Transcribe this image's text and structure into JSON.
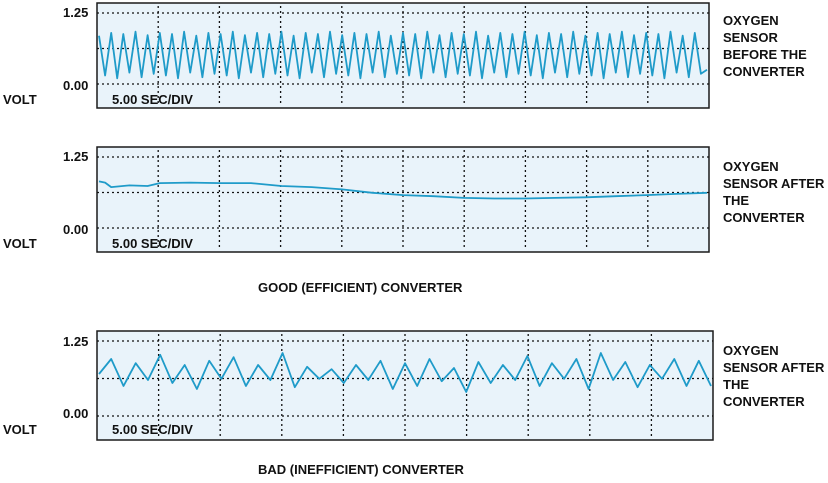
{
  "chart_data": [
    {
      "type": "line",
      "panel_label": "OXYGEN SENSOR BEFORE THE CONVERTER",
      "y_unit": "VOLT",
      "y_ticks": [
        "1.25",
        "0.00"
      ],
      "ylim": [
        0,
        1.25
      ],
      "time_base": "5.00 SEC/DIV",
      "x_divisions": 10,
      "grid": true,
      "x": [
        0,
        0.1,
        0.2,
        0.3,
        0.4,
        0.5,
        0.6,
        0.7,
        0.8,
        0.9,
        1,
        1.1,
        1.2,
        1.3,
        1.4,
        1.5,
        1.6,
        1.7,
        1.8,
        1.9,
        2,
        2.1,
        2.2,
        2.3,
        2.4,
        2.5,
        2.6,
        2.7,
        2.8,
        2.9,
        3,
        3.1,
        3.2,
        3.3,
        3.4,
        3.5,
        3.6,
        3.7,
        3.8,
        3.9,
        4,
        4.1,
        4.2,
        4.3,
        4.4,
        4.5,
        4.6,
        4.7,
        4.8,
        4.9,
        5,
        5.1,
        5.2,
        5.3,
        5.4,
        5.5,
        5.6,
        5.7,
        5.8,
        5.9,
        6,
        6.1,
        6.2,
        6.3,
        6.4,
        6.5,
        6.6,
        6.7,
        6.8,
        6.9,
        7,
        7.1,
        7.2,
        7.3,
        7.4,
        7.5,
        7.6,
        7.7,
        7.8,
        7.9,
        8,
        8.1,
        8.2,
        8.3,
        8.4,
        8.5,
        8.6,
        8.7,
        8.8,
        8.9,
        9,
        9.1,
        9.2,
        9.3,
        9.4,
        9.5,
        9.6,
        9.7,
        9.8,
        9.9,
        10
      ],
      "y": [
        0.85,
        0.15,
        0.9,
        0.1,
        0.88,
        0.2,
        0.92,
        0.12,
        0.86,
        0.18,
        0.9,
        0.15,
        0.88,
        0.1,
        0.92,
        0.2,
        0.85,
        0.12,
        0.9,
        0.18,
        0.88,
        0.15,
        0.92,
        0.1,
        0.86,
        0.2,
        0.9,
        0.12,
        0.88,
        0.18,
        0.92,
        0.15,
        0.85,
        0.1,
        0.9,
        0.2,
        0.88,
        0.12,
        0.92,
        0.18,
        0.86,
        0.15,
        0.9,
        0.1,
        0.88,
        0.2,
        0.92,
        0.12,
        0.85,
        0.18,
        0.9,
        0.15,
        0.88,
        0.1,
        0.92,
        0.2,
        0.86,
        0.12,
        0.9,
        0.18,
        0.88,
        0.15,
        0.92,
        0.1,
        0.85,
        0.2,
        0.9,
        0.12,
        0.88,
        0.18,
        0.92,
        0.15,
        0.86,
        0.1,
        0.9,
        0.2,
        0.88,
        0.12,
        0.92,
        0.18,
        0.85,
        0.15,
        0.9,
        0.1,
        0.88,
        0.2,
        0.92,
        0.12,
        0.86,
        0.18,
        0.9,
        0.15,
        0.88,
        0.1,
        0.92,
        0.2,
        0.85,
        0.12,
        0.9,
        0.18,
        0.25
      ]
    },
    {
      "type": "line",
      "panel_label": "OXYGEN SENSOR AFTER THE CONVERTER",
      "y_unit": "VOLT",
      "y_ticks": [
        "1.25",
        "0.00"
      ],
      "ylim": [
        0,
        1.25
      ],
      "time_base": "5.00 SEC/DIV",
      "x_divisions": 10,
      "grid": true,
      "x": [
        0,
        0.1,
        0.2,
        0.5,
        0.8,
        1.0,
        1.5,
        2.0,
        2.5,
        3.0,
        3.5,
        4.0,
        4.5,
        5.0,
        5.5,
        6.0,
        6.5,
        7.0,
        7.5,
        8.0,
        8.5,
        9.0,
        9.5,
        10
      ],
      "y": [
        0.82,
        0.8,
        0.72,
        0.75,
        0.74,
        0.79,
        0.8,
        0.79,
        0.79,
        0.74,
        0.72,
        0.68,
        0.62,
        0.58,
        0.56,
        0.53,
        0.52,
        0.52,
        0.53,
        0.54,
        0.56,
        0.58,
        0.6,
        0.62
      ]
    },
    {
      "type": "line",
      "panel_label": "OXYGEN SENSOR AFTER THE CONVERTER",
      "y_unit": "VOLT",
      "y_ticks": [
        "1.25",
        "0.00"
      ],
      "ylim": [
        0,
        1.25
      ],
      "time_base": "5.00 SEC/DIV",
      "x_divisions": 10,
      "grid": true,
      "x": [
        0,
        0.2,
        0.4,
        0.6,
        0.8,
        1.0,
        1.2,
        1.4,
        1.6,
        1.8,
        2.0,
        2.2,
        2.4,
        2.6,
        2.8,
        3.0,
        3.2,
        3.4,
        3.6,
        3.8,
        4.0,
        4.2,
        4.4,
        4.6,
        4.8,
        5.0,
        5.2,
        5.4,
        5.6,
        5.8,
        6.0,
        6.2,
        6.4,
        6.6,
        6.8,
        7.0,
        7.2,
        7.4,
        7.6,
        7.8,
        8.0,
        8.2,
        8.4,
        8.6,
        8.8,
        9.0,
        9.2,
        9.4,
        9.6,
        9.8,
        10
      ],
      "y": [
        0.7,
        0.95,
        0.5,
        0.88,
        0.6,
        1.02,
        0.55,
        0.85,
        0.45,
        0.92,
        0.62,
        0.98,
        0.5,
        0.85,
        0.6,
        1.05,
        0.48,
        0.82,
        0.62,
        0.78,
        0.55,
        0.85,
        0.6,
        0.92,
        0.45,
        0.88,
        0.5,
        0.95,
        0.58,
        0.8,
        0.4,
        0.9,
        0.55,
        0.85,
        0.6,
        1.0,
        0.5,
        0.88,
        0.62,
        0.95,
        0.45,
        1.05,
        0.6,
        0.9,
        0.48,
        0.85,
        0.62,
        0.95,
        0.5,
        0.92,
        0.5
      ]
    }
  ],
  "captions": {
    "good": "GOOD (EFFICIENT) CONVERTER",
    "bad": "BAD (INEFFICIENT) CONVERTER"
  },
  "colors": {
    "panel_bg": "#e9f3fa",
    "trace": "#1f9bc9",
    "frame": "#1a1a1a",
    "grid": "#111111"
  }
}
